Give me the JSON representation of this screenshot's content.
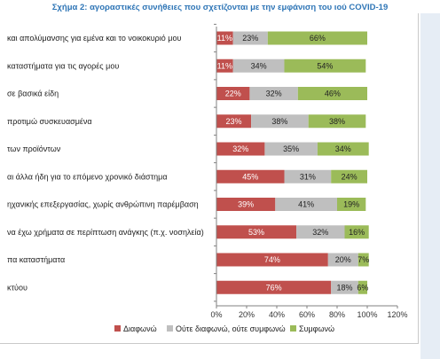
{
  "figure": {
    "title": "Σχήμα 2: αγοραστικές συνήθειες που σχετίζονται με την εμφάνιση του ιού COVID-19"
  },
  "chart_data": {
    "type": "bar",
    "orientation": "horizontal",
    "stacked": true,
    "categories": [
      "και απολύμανσης για εμένα και το νοικοκυριό μου",
      "καταστήματα για τις αγορές μου",
      "σε βασικά είδη",
      "προτιμώ συσκευασμένα",
      "των προϊόντων",
      "αι άλλα ήδη για το επόμενο χρονικό διάστημα",
      "ηχανικής επεξεργασίας, χωρίς ανθρώπινη παρέμβαση",
      "να έχω χρήματα σε περίπτωση ανάγκης (π.χ. νοσηλεία)",
      "πα καταστήματα",
      "κτύου"
    ],
    "series": [
      {
        "name": "Διαφωνώ",
        "color": "#c0504d",
        "values": [
          11,
          11,
          22,
          23,
          32,
          45,
          39,
          53,
          74,
          76
        ],
        "labels": [
          "11%",
          "11%",
          "22%",
          "23%",
          "32%",
          "45%",
          "39%",
          "53%",
          "74%",
          "76%"
        ]
      },
      {
        "name": "Ούτε διαφωνώ, ούτε συμφωνώ",
        "color": "#bfbfbf",
        "values": [
          23,
          34,
          32,
          38,
          35,
          31,
          41,
          32,
          20,
          18
        ],
        "labels": [
          "23%",
          "34%",
          "32%",
          "38%",
          "35%",
          "31%",
          "41%",
          "32%",
          "20%",
          "18%"
        ]
      },
      {
        "name": "Συμφωνώ",
        "color": "#9bbb59",
        "values": [
          66,
          54,
          46,
          38,
          34,
          24,
          19,
          16,
          7,
          6
        ],
        "labels": [
          "66%",
          "54%",
          "46%",
          "38%",
          "34%",
          "24%",
          "19%",
          "16%",
          "7%",
          "6%"
        ]
      }
    ],
    "xlim": [
      0,
      120
    ],
    "xticks": [
      "0%",
      "20%",
      "40%",
      "60%",
      "80%",
      "100%",
      "120%"
    ],
    "xtick_values": [
      0,
      20,
      40,
      60,
      80,
      100,
      120
    ],
    "grid": false,
    "legend_position": "bottom"
  }
}
